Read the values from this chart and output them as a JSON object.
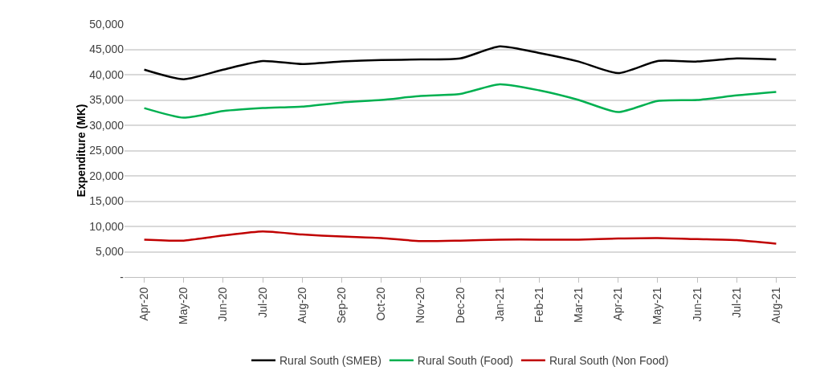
{
  "chart_data": {
    "type": "line",
    "ylabel": "Expenditure (MK)",
    "categories": [
      "Apr-20",
      "May-20",
      "Jun-20",
      "Jul-20",
      "Aug-20",
      "Sep-20",
      "Oct-20",
      "Nov-20",
      "Dec-20",
      "Jan-21",
      "Feb-21",
      "Mar-21",
      "Apr-21",
      "May-21",
      "Jun-21",
      "Jul-21",
      "Aug-21"
    ],
    "series": [
      {
        "name": "Rural South (SMEB)",
        "color": "#000000",
        "values": [
          41000,
          39100,
          41000,
          42700,
          42100,
          42600,
          42900,
          43000,
          43200,
          45600,
          44300,
          42600,
          40300,
          42700,
          42600,
          43200,
          43000
        ]
      },
      {
        "name": "Rural South (Food)",
        "color": "#00b050",
        "values": [
          33400,
          31500,
          32800,
          33400,
          33700,
          34500,
          35000,
          35800,
          36200,
          38100,
          36900,
          35000,
          32600,
          34800,
          35000,
          35900,
          36600
        ]
      },
      {
        "name": "Rural South (Non Food)",
        "color": "#c00000",
        "values": [
          7400,
          7200,
          8200,
          9000,
          8400,
          8000,
          7700,
          7100,
          7200,
          7400,
          7400,
          7400,
          7600,
          7700,
          7500,
          7300,
          6600
        ]
      }
    ],
    "ylim": [
      0,
      50000
    ],
    "yticks": [
      {
        "value": 0,
        "label": "-"
      },
      {
        "value": 5000,
        "label": "5,000"
      },
      {
        "value": 10000,
        "label": "10,000"
      },
      {
        "value": 15000,
        "label": "15,000"
      },
      {
        "value": 20000,
        "label": "20,000"
      },
      {
        "value": 25000,
        "label": "25,000"
      },
      {
        "value": 30000,
        "label": "30,000"
      },
      {
        "value": 35000,
        "label": "35,000"
      },
      {
        "value": 40000,
        "label": "40,000"
      },
      {
        "value": 45000,
        "label": "45,000"
      },
      {
        "value": 50000,
        "label": "50,000"
      }
    ],
    "grid": "y",
    "legend": "bottom",
    "marker": "none",
    "line_style": "solid"
  }
}
